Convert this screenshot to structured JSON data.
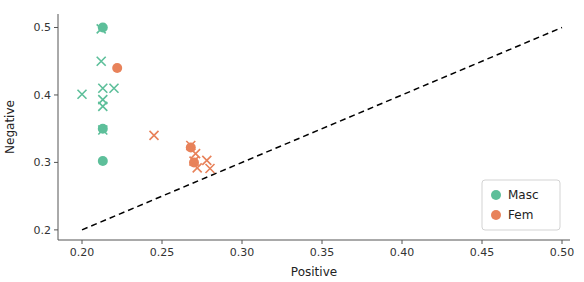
{
  "chart_data": {
    "type": "scatter",
    "xlabel": "Positive",
    "ylabel": "Negative",
    "xlim": [
      0.185,
      0.505
    ],
    "ylim": [
      0.185,
      0.52
    ],
    "xticks": [
      {
        "value": 0.2,
        "label": "0.20"
      },
      0.25,
      {
        "value": 0.3,
        "label": "0.30"
      },
      0.35,
      {
        "value": 0.4,
        "label": "0.40"
      },
      0.45,
      {
        "value": 0.5,
        "label": "0.50"
      }
    ],
    "yticks": [
      0.2,
      0.3,
      0.4,
      0.5
    ],
    "grid": false,
    "legend": "lower right",
    "series": [
      {
        "type": "line",
        "line_style": "dashed",
        "color": "#000000",
        "x": [
          0.2,
          0.5
        ],
        "values": [
          0.2,
          0.5
        ]
      },
      {
        "name": "Masc",
        "color": "#5dbf9a",
        "marker": "circle",
        "x": [
          0.213,
          0.213,
          0.213
        ],
        "values": [
          0.5,
          0.35,
          0.302
        ]
      },
      {
        "color": "#5dbf9a",
        "marker": "cross",
        "x": [
          0.212,
          0.212,
          0.2,
          0.213,
          0.22,
          0.213,
          0.213,
          0.213
        ],
        "values": [
          0.498,
          0.45,
          0.401,
          0.41,
          0.41,
          0.393,
          0.383,
          0.348
        ]
      },
      {
        "name": "Fem",
        "color": "#e8825a",
        "marker": "circle",
        "x": [
          0.222,
          0.268,
          0.27
        ],
        "values": [
          0.44,
          0.322,
          0.3
        ]
      },
      {
        "color": "#e8825a",
        "marker": "cross",
        "x": [
          0.245,
          0.268,
          0.271,
          0.27,
          0.272,
          0.278,
          0.28
        ],
        "values": [
          0.34,
          0.325,
          0.313,
          0.302,
          0.292,
          0.303,
          0.291
        ]
      }
    ]
  }
}
